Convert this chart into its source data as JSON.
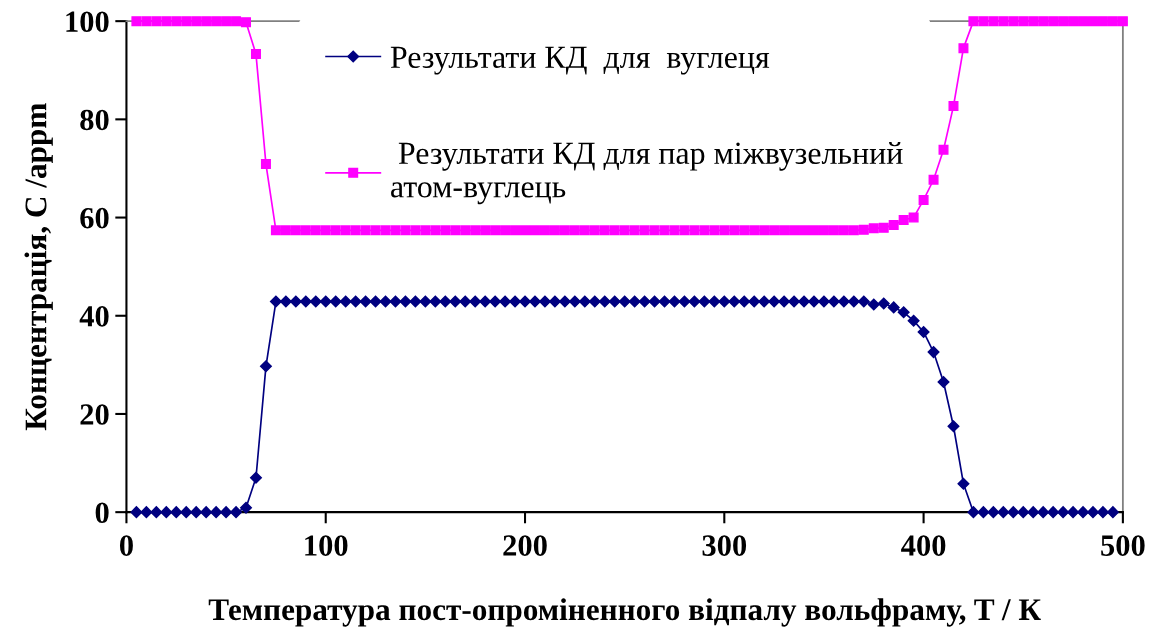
{
  "chart_data": {
    "type": "line",
    "xlabel": "Температура пост-опроміненного відпалу вольфраму, T / К",
    "ylabel": "Концентрація, C /appm",
    "xlim": [
      0,
      500
    ],
    "ylim": [
      0,
      100
    ],
    "xticks": [
      0,
      100,
      200,
      300,
      400,
      500
    ],
    "yticks": [
      0,
      20,
      40,
      60,
      80,
      100
    ],
    "grid": false,
    "legend": "top",
    "line_style": "solid",
    "series": [
      {
        "name": "Результати КД  для  вуглеця",
        "color": "#000080",
        "marker": "diamond",
        "x": [
          5,
          10,
          15,
          20,
          25,
          30,
          35,
          40,
          45,
          50,
          55,
          60,
          65,
          70,
          75,
          80,
          85,
          90,
          95,
          100,
          105,
          110,
          115,
          120,
          125,
          130,
          135,
          140,
          145,
          150,
          155,
          160,
          165,
          170,
          175,
          180,
          185,
          190,
          195,
          200,
          205,
          210,
          215,
          220,
          225,
          230,
          235,
          240,
          245,
          250,
          255,
          260,
          265,
          270,
          275,
          280,
          285,
          290,
          295,
          300,
          305,
          310,
          315,
          320,
          325,
          330,
          335,
          340,
          345,
          350,
          355,
          360,
          365,
          370,
          375,
          380,
          385,
          390,
          395,
          400,
          405,
          410,
          415,
          420,
          425,
          430,
          435,
          440,
          445,
          450,
          455,
          460,
          465,
          470,
          475,
          480,
          485,
          490,
          495
        ],
        "values": [
          0,
          0,
          0,
          0,
          0,
          0,
          0,
          0,
          0,
          0,
          0,
          0.9,
          7,
          29.7,
          42.9,
          42.9,
          42.9,
          42.9,
          42.9,
          42.9,
          42.9,
          42.9,
          42.9,
          42.9,
          42.9,
          42.9,
          42.9,
          42.9,
          42.9,
          42.9,
          42.9,
          42.9,
          42.9,
          42.9,
          42.9,
          42.9,
          42.9,
          42.9,
          42.9,
          42.9,
          42.9,
          42.9,
          42.9,
          42.9,
          42.9,
          42.9,
          42.9,
          42.9,
          42.9,
          42.9,
          42.9,
          42.9,
          42.9,
          42.9,
          42.9,
          42.9,
          42.9,
          42.9,
          42.9,
          42.9,
          42.9,
          42.9,
          42.9,
          42.9,
          42.9,
          42.9,
          42.9,
          42.9,
          42.9,
          42.9,
          42.9,
          42.9,
          42.9,
          42.9,
          42.3,
          42.5,
          41.7,
          40.7,
          39.0,
          36.7,
          32.6,
          26.5,
          17.5,
          5.8,
          0,
          0,
          0,
          0,
          0,
          0,
          0,
          0,
          0,
          0,
          0,
          0,
          0,
          0,
          0
        ]
      },
      {
        "name": " Результати КД для пар міжвузельний\nатом-вуглець",
        "color": "#ff00ff",
        "marker": "square",
        "x": [
          5,
          10,
          15,
          20,
          25,
          30,
          35,
          40,
          45,
          50,
          55,
          60,
          65,
          70,
          75,
          80,
          85,
          90,
          95,
          100,
          105,
          110,
          115,
          120,
          125,
          130,
          135,
          140,
          145,
          150,
          155,
          160,
          165,
          170,
          175,
          180,
          185,
          190,
          195,
          200,
          205,
          210,
          215,
          220,
          225,
          230,
          235,
          240,
          245,
          250,
          255,
          260,
          265,
          270,
          275,
          280,
          285,
          290,
          295,
          300,
          305,
          310,
          315,
          320,
          325,
          330,
          335,
          340,
          345,
          350,
          355,
          360,
          365,
          370,
          375,
          380,
          385,
          390,
          395,
          400,
          405,
          410,
          415,
          420,
          425,
          430,
          435,
          440,
          445,
          450,
          455,
          460,
          465,
          470,
          475,
          480,
          485,
          490,
          495,
          500
        ],
        "values": [
          100,
          100,
          100,
          100,
          100,
          100,
          100,
          100,
          100,
          100,
          100,
          99.8,
          93.3,
          70.9,
          57.4,
          57.4,
          57.4,
          57.4,
          57.4,
          57.4,
          57.4,
          57.4,
          57.4,
          57.4,
          57.4,
          57.4,
          57.4,
          57.4,
          57.4,
          57.4,
          57.4,
          57.4,
          57.4,
          57.4,
          57.4,
          57.4,
          57.4,
          57.4,
          57.4,
          57.4,
          57.4,
          57.4,
          57.4,
          57.4,
          57.4,
          57.4,
          57.4,
          57.4,
          57.4,
          57.4,
          57.4,
          57.4,
          57.4,
          57.4,
          57.4,
          57.4,
          57.4,
          57.4,
          57.4,
          57.4,
          57.4,
          57.4,
          57.4,
          57.4,
          57.4,
          57.4,
          57.4,
          57.4,
          57.4,
          57.4,
          57.4,
          57.4,
          57.4,
          57.5,
          57.8,
          57.9,
          58.5,
          59.5,
          60.0,
          63.6,
          67.7,
          73.8,
          82.7,
          94.5,
          100,
          100,
          100,
          100,
          100,
          100,
          100,
          100,
          100,
          100,
          100,
          100,
          100,
          100,
          100,
          100
        ]
      }
    ]
  }
}
